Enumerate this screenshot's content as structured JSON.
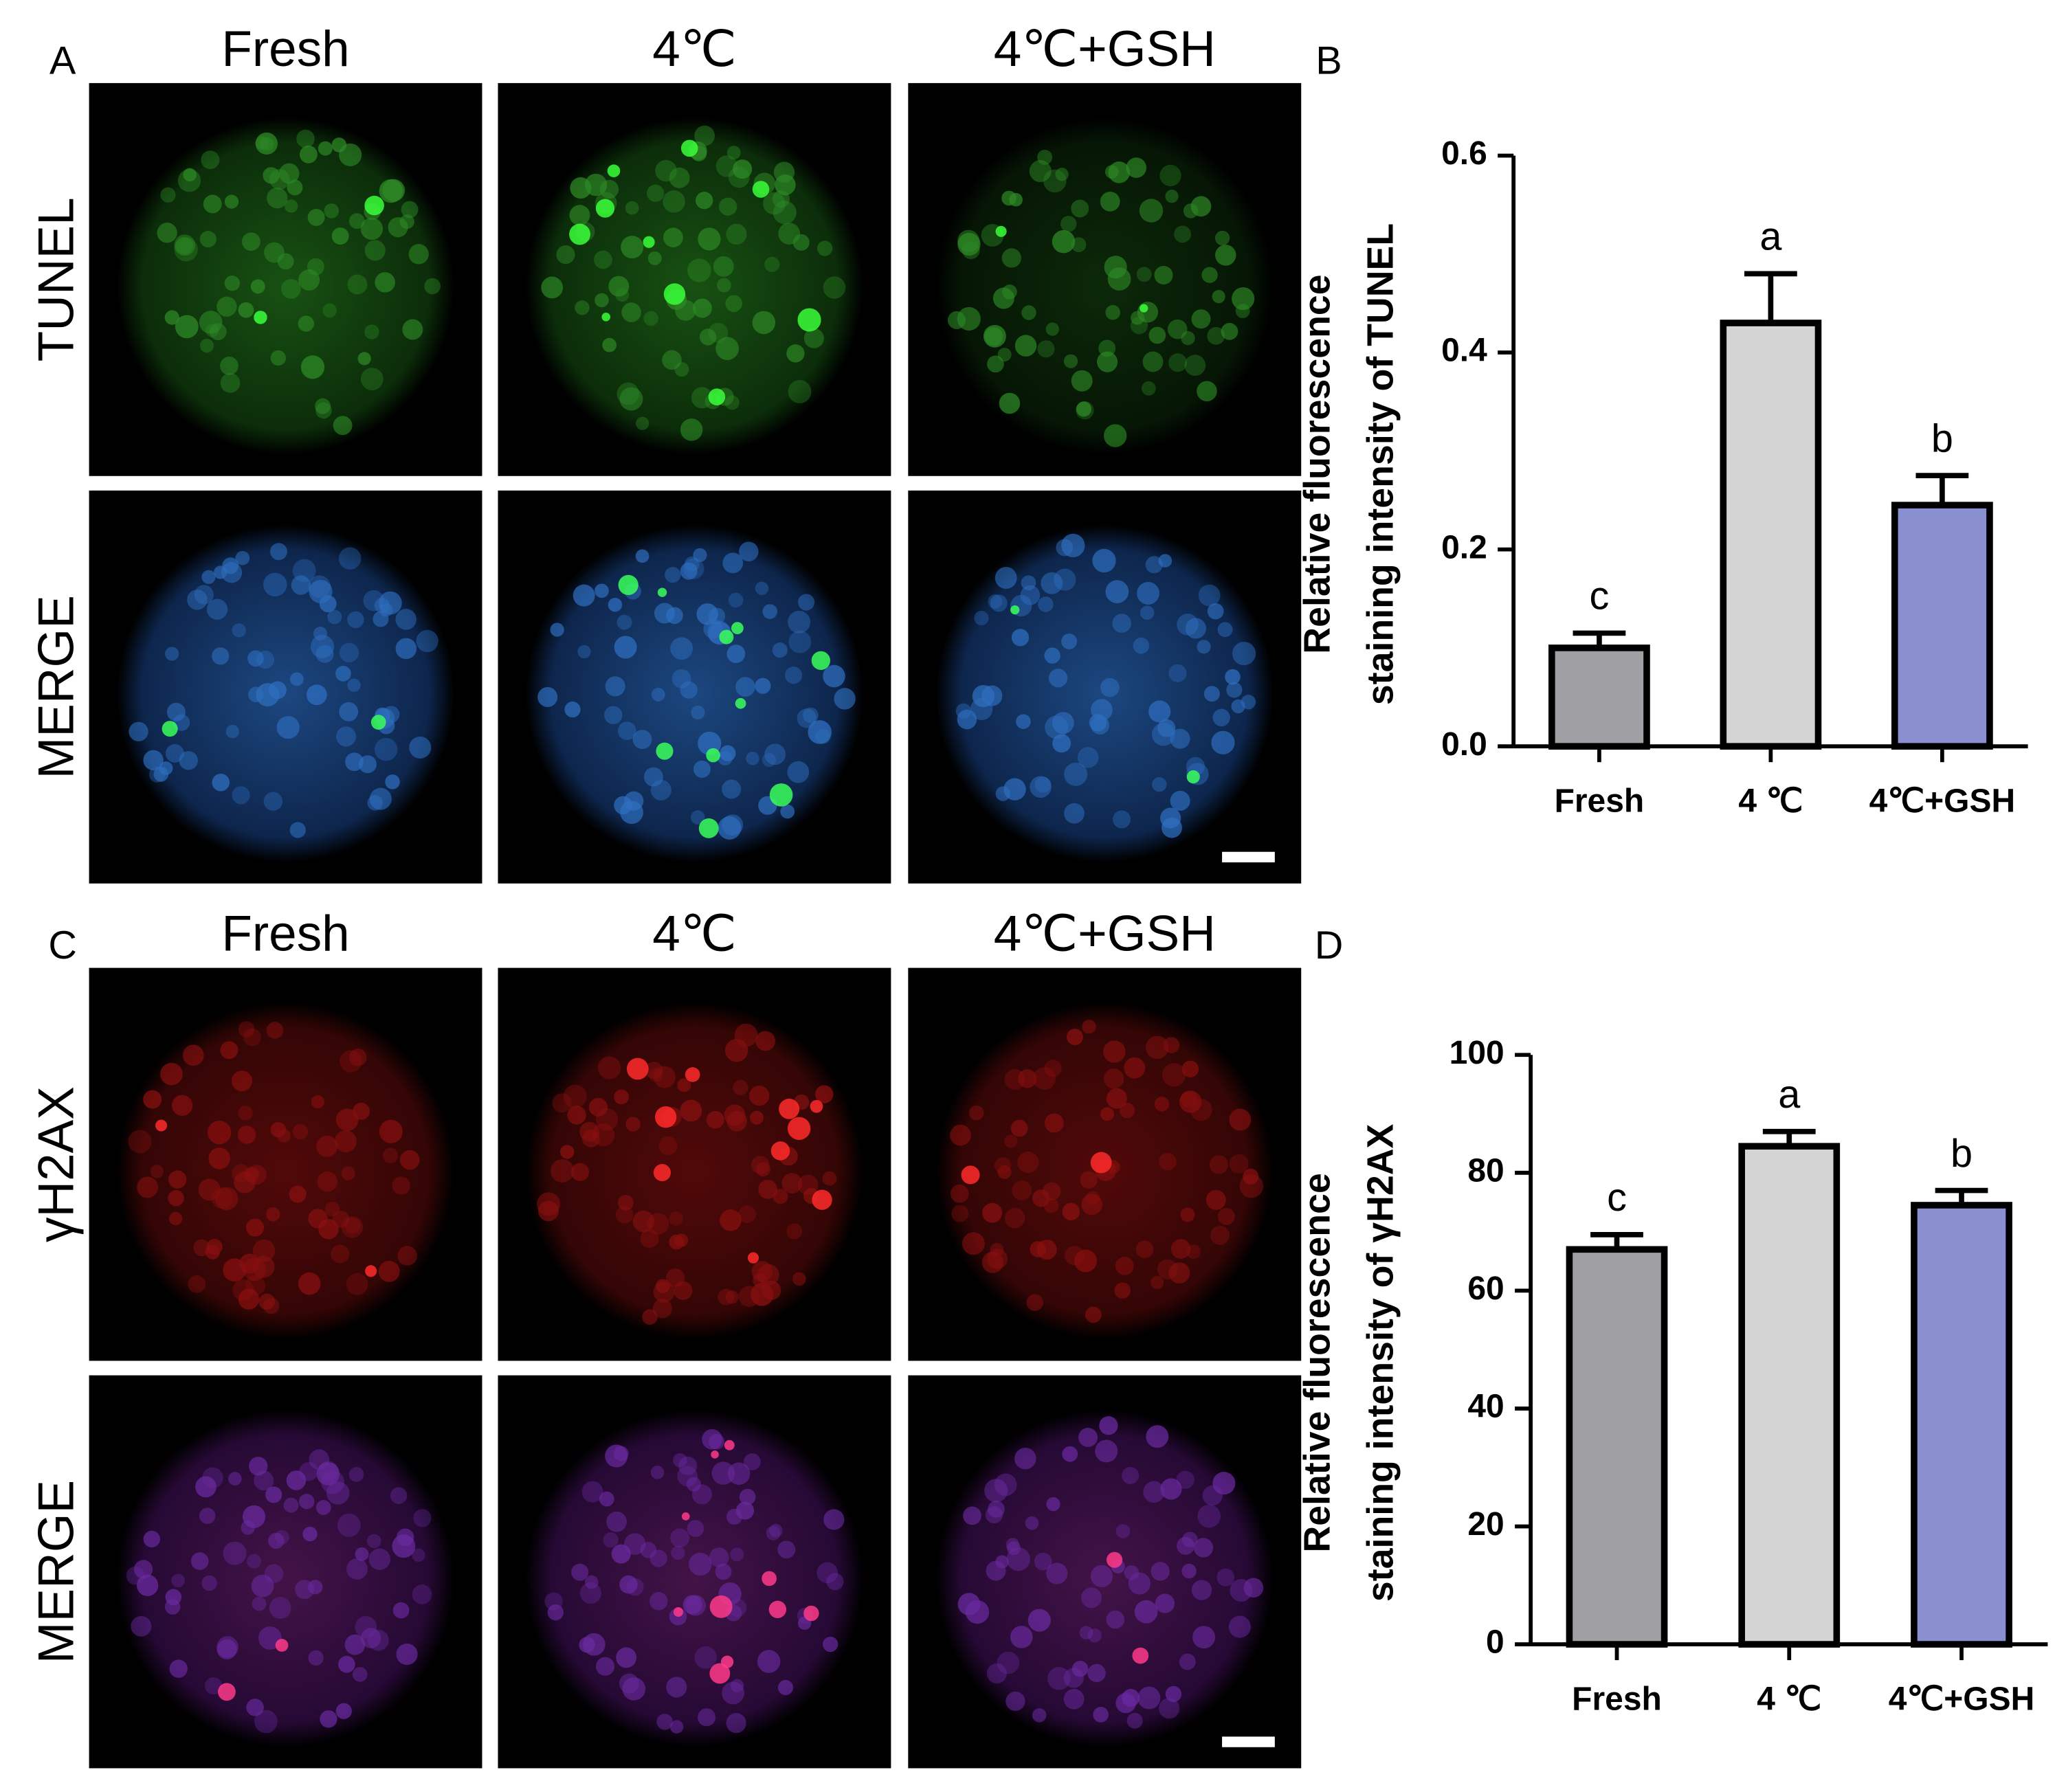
{
  "figure": {
    "image_panels": [
      {
        "label": "A",
        "columns": [
          "Fresh",
          "4℃",
          "4℃+GSH"
        ],
        "rows": [
          "TUNEL",
          "MERGE"
        ]
      },
      {
        "label": "C",
        "columns": [
          "Fresh",
          "4℃",
          "4℃+GSH"
        ],
        "rows": [
          "γH2AX",
          "MERGE"
        ]
      }
    ]
  },
  "chart_data": [
    {
      "type": "bar",
      "panel_label": "B",
      "y_label": [
        "Relative fluorescence",
        "staining intensity of TUNEL"
      ],
      "categories": [
        "Fresh",
        "4 ℃",
        "4℃+GSH"
      ],
      "values": [
        0.1,
        0.43,
        0.245
      ],
      "errors": [
        0.015,
        0.05,
        0.03
      ],
      "annotations": [
        "c",
        "a",
        "b"
      ],
      "colors": [
        "#a0a0a4",
        "#d4d4d4",
        "#8a8fcf"
      ],
      "ylim": [
        0,
        0.6
      ],
      "yticks": [
        {
          "value": 0,
          "label": "0.0"
        },
        0.2,
        0.4,
        0.6
      ]
    },
    {
      "type": "bar",
      "panel_label": "D",
      "y_label": [
        "Relative fluorescence",
        "staining intensity of γH2AX"
      ],
      "categories": [
        "Fresh",
        "4 ℃",
        "4℃+GSH"
      ],
      "values": [
        67,
        84.5,
        74.5
      ],
      "errors": [
        2.5,
        2.5,
        2.5
      ],
      "annotations": [
        "c",
        "a",
        "b"
      ],
      "colors": [
        "#a0a0a4",
        "#d4d4d4",
        "#8a8fcf"
      ],
      "ylim": [
        0,
        100
      ],
      "yticks": [
        0,
        20,
        40,
        60,
        80,
        100
      ]
    }
  ]
}
